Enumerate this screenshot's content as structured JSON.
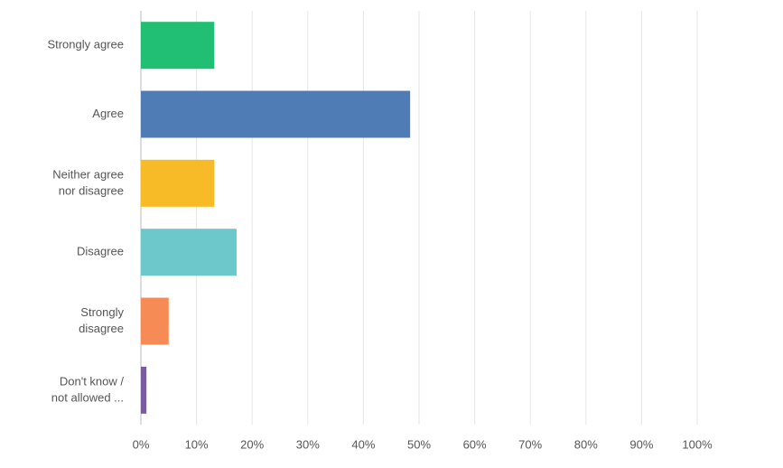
{
  "chart_data": {
    "type": "bar",
    "orientation": "horizontal",
    "categories": [
      [
        "Strongly agree"
      ],
      [
        "Agree"
      ],
      [
        "Neither agree",
        "nor disagree"
      ],
      [
        "Disagree"
      ],
      [
        "Strongly",
        "disagree"
      ],
      [
        "Don't know /",
        "not allowed ..."
      ]
    ],
    "values": [
      13.2,
      48.4,
      13.2,
      17.2,
      5.0,
      1.0
    ],
    "colors": [
      "#21bf73",
      "#507cb6",
      "#f7bb27",
      "#6cc8cb",
      "#f78b55",
      "#7b5b9f"
    ],
    "xlim": [
      0,
      100
    ],
    "xticks": [
      {
        "value": 0,
        "label": "0%"
      },
      {
        "value": 10,
        "label": "10%"
      },
      {
        "value": 20,
        "label": "20%"
      },
      {
        "value": 30,
        "label": "30%"
      },
      {
        "value": 40,
        "label": "40%"
      },
      {
        "value": 50,
        "label": "50%"
      },
      {
        "value": 60,
        "label": "60%"
      },
      {
        "value": 70,
        "label": "70%"
      },
      {
        "value": 80,
        "label": "80%"
      },
      {
        "value": 90,
        "label": "90%"
      },
      {
        "value": 100,
        "label": "100%"
      }
    ],
    "grid": true
  }
}
